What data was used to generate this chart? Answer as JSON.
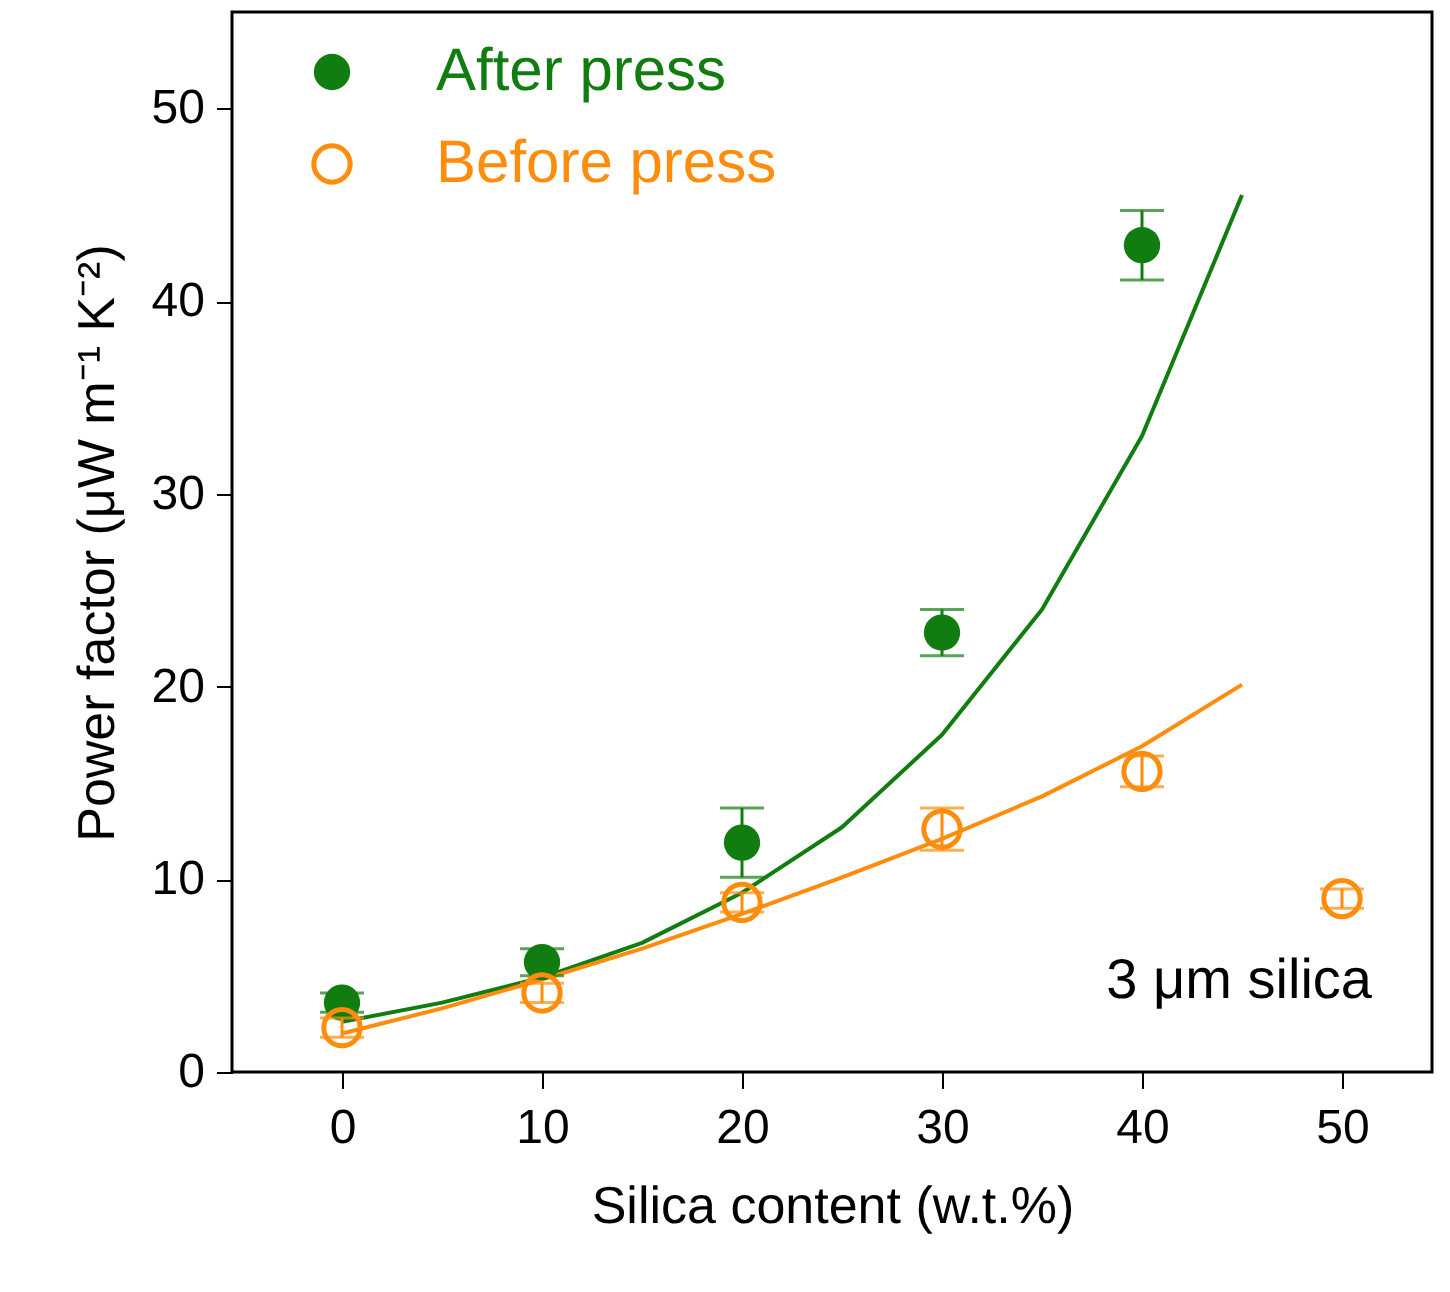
{
  "chart_data": {
    "type": "scatter",
    "xlabel": "Silica content (w.t.%)",
    "ylabel": "Power factor (μW m⁻¹ K⁻²)",
    "xlim": [
      -5.5,
      54.5
    ],
    "ylim": [
      0,
      55
    ],
    "xticks": [
      0,
      10,
      20,
      30,
      40,
      50
    ],
    "yticks": [
      0,
      10,
      20,
      30,
      40,
      50
    ],
    "grid": false,
    "legend": "top left",
    "series": [
      {
        "name": "After press",
        "marker": "circle",
        "color": "#117d11",
        "x": [
          0,
          10,
          20,
          30,
          40
        ],
        "values": [
          3.6,
          5.7,
          11.9,
          22.8,
          42.9
        ],
        "errors": [
          0.5,
          0.7,
          1.8,
          1.2,
          1.8
        ]
      },
      {
        "name": "Before press",
        "marker": "circle",
        "color": "#ff8c0a",
        "x": [
          0,
          10,
          20,
          30,
          40,
          50
        ],
        "values": [
          2.3,
          4.1,
          8.8,
          12.6,
          15.6,
          9.0
        ],
        "errors": [
          0.5,
          0.5,
          0.5,
          1.1,
          0.8,
          0.5
        ]
      },
      {
        "type": "line",
        "marker": "none",
        "color": "#117d11",
        "x": [
          0,
          5,
          10,
          15,
          20,
          25,
          30,
          35,
          40,
          45
        ],
        "values": [
          2.6,
          3.6,
          4.9,
          6.7,
          9.3,
          12.7,
          17.5,
          24.0,
          33.0,
          45.5
        ]
      },
      {
        "type": "line",
        "marker": "none",
        "color": "#ff8c0a",
        "x": [
          0,
          5,
          10,
          15,
          20,
          25,
          30,
          35,
          40,
          45
        ],
        "values": [
          2.0,
          3.3,
          4.8,
          6.4,
          8.2,
          10.1,
          12.1,
          14.3,
          16.9,
          20.1
        ]
      }
    ],
    "annotations": [
      "3 μm silica"
    ]
  }
}
